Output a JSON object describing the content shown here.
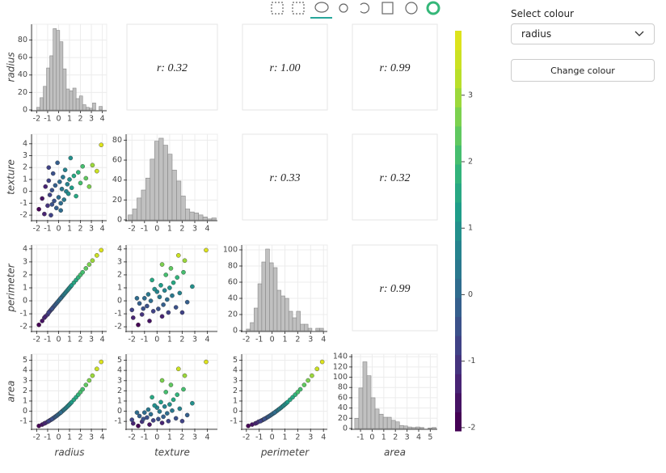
{
  "chart_data": {
    "type": "scatter_matrix",
    "colormap": "viridis",
    "hist_color": "#c0c0c0",
    "variables": [
      {
        "name": "radius",
        "lim": [
          -2.4,
          4.4
        ],
        "ticks": [
          -2,
          -1,
          0,
          1,
          2,
          3,
          4
        ],
        "values": [
          -1.8,
          -1.5,
          -1.3,
          -1.2,
          -1.0,
          -0.9,
          -0.8,
          -0.7,
          -0.6,
          -0.5,
          -0.4,
          -0.3,
          -0.2,
          -0.1,
          0.0,
          0.1,
          0.2,
          0.3,
          0.4,
          0.5,
          0.6,
          0.7,
          0.8,
          0.9,
          1.0,
          1.1,
          1.2,
          1.4,
          1.6,
          1.8,
          2.0,
          2.2,
          2.5,
          2.8,
          3.1,
          3.5,
          3.9,
          -0.6,
          -0.9,
          0.2
        ],
        "hist": {
          "bins": [
            -2.0,
            -1.7,
            -1.4,
            -1.1,
            -0.8,
            -0.5,
            -0.2,
            0.1,
            0.4,
            0.7,
            1.0,
            1.3,
            1.6,
            1.9,
            2.2,
            2.5,
            2.8,
            3.1,
            3.4,
            3.7,
            4.0
          ],
          "counts": [
            3,
            14,
            27,
            48,
            62,
            93,
            91,
            78,
            47,
            24,
            22,
            25,
            13,
            16,
            6,
            3,
            2,
            8,
            0,
            4
          ],
          "ylim": [
            0,
            98
          ],
          "yticks": [
            0,
            20,
            40,
            60,
            80
          ]
        }
      },
      {
        "name": "texture",
        "lim": [
          -2.4,
          4.8
        ],
        "ticks": [
          -2,
          -1,
          0,
          1,
          2,
          3,
          4
        ],
        "values": [
          -1.5,
          -0.6,
          -1.9,
          0.4,
          -1.2,
          0.9,
          -0.3,
          -2.0,
          0.1,
          1.5,
          -0.8,
          0.5,
          -1.4,
          2.4,
          -0.5,
          0.8,
          -1.0,
          0.2,
          1.2,
          -0.7,
          1.8,
          0.0,
          0.6,
          -0.2,
          1.0,
          2.8,
          0.3,
          1.3,
          -0.4,
          1.6,
          0.7,
          2.1,
          1.1,
          0.4,
          2.2,
          1.7,
          3.9,
          -1.1,
          2.0,
          -1.6
        ],
        "hist": {
          "bins": [
            -2.3,
            -1.95,
            -1.6,
            -1.25,
            -0.9,
            -0.55,
            -0.2,
            0.15,
            0.5,
            0.85,
            1.2,
            1.55,
            1.9,
            2.25,
            2.6,
            2.95,
            3.3,
            3.65,
            4.0,
            4.35,
            4.7
          ],
          "counts": [
            5,
            11,
            22,
            30,
            42,
            61,
            79,
            82,
            75,
            66,
            50,
            39,
            24,
            11,
            8,
            7,
            5,
            3,
            1,
            2
          ],
          "ylim": [
            0,
            86
          ],
          "yticks": [
            0,
            20,
            40,
            60,
            80
          ]
        }
      },
      {
        "name": "perimeter",
        "lim": [
          -2.3,
          4.3
        ],
        "ticks": [
          -2,
          -1,
          0,
          1,
          2,
          3,
          4
        ],
        "values": [
          -1.85,
          -1.55,
          -1.3,
          -1.2,
          -1.05,
          -0.9,
          -0.8,
          -0.7,
          -0.62,
          -0.5,
          -0.4,
          -0.3,
          -0.2,
          -0.1,
          0.0,
          0.1,
          0.2,
          0.3,
          0.4,
          0.5,
          0.6,
          0.7,
          0.8,
          0.9,
          1.0,
          1.1,
          1.2,
          1.4,
          1.6,
          1.8,
          2.0,
          2.2,
          2.5,
          2.8,
          3.1,
          3.5,
          3.9,
          -0.6,
          -0.9,
          0.2
        ],
        "hist": {
          "bins": [
            -2.0,
            -1.7,
            -1.4,
            -1.1,
            -0.8,
            -0.5,
            -0.2,
            0.1,
            0.4,
            0.7,
            1.0,
            1.3,
            1.6,
            1.9,
            2.2,
            2.5,
            2.8,
            3.1,
            3.4,
            3.7,
            4.0
          ],
          "counts": [
            2,
            10,
            28,
            58,
            85,
            101,
            84,
            78,
            50,
            43,
            40,
            24,
            16,
            24,
            8,
            8,
            3,
            0,
            3,
            3
          ],
          "ylim": [
            0,
            106
          ],
          "yticks": [
            0,
            20,
            40,
            60,
            80,
            100
          ]
        }
      },
      {
        "name": "area",
        "lim": [
          -1.7,
          5.6
        ],
        "ticks": [
          -1,
          0,
          1,
          2,
          3,
          4,
          5
        ],
        "values": [
          -1.44,
          -1.31,
          -1.2,
          -1.15,
          -1.03,
          -0.97,
          -0.9,
          -0.84,
          -0.77,
          -0.7,
          -0.62,
          -0.54,
          -0.47,
          -0.38,
          -0.3,
          -0.21,
          -0.13,
          -0.03,
          0.06,
          0.16,
          0.25,
          0.35,
          0.46,
          0.56,
          0.67,
          0.78,
          0.89,
          1.13,
          1.37,
          1.62,
          1.88,
          2.15,
          2.58,
          3.02,
          3.49,
          4.15,
          4.84,
          -0.77,
          -0.97,
          -0.13
        ],
        "hist": {
          "bins": [
            -1.5,
            -1.15,
            -0.8,
            -0.45,
            -0.1,
            0.25,
            0.6,
            0.95,
            1.3,
            1.65,
            2.0,
            2.35,
            2.7,
            3.05,
            3.4,
            3.75,
            4.1,
            4.45,
            4.8,
            5.15,
            5.5
          ],
          "counts": [
            20,
            79,
            130,
            103,
            60,
            38,
            28,
            22,
            22,
            16,
            13,
            6,
            5,
            3,
            2,
            3,
            2,
            0,
            1,
            2
          ],
          "ylim": [
            0,
            145
          ],
          "yticks": [
            0,
            20,
            40,
            60,
            80,
            100,
            120,
            140
          ]
        }
      }
    ],
    "correlations": [
      [
        "r: 0.32",
        "r: 1.00",
        "r: 0.99"
      ],
      [
        "r: 0.33",
        "r: 0.32"
      ],
      [
        "r: 0.99"
      ]
    ],
    "colorbar": {
      "lim": [
        -2.05,
        3.97
      ],
      "ticks": [
        -2,
        -1,
        0,
        1,
        2,
        3
      ]
    },
    "controls": {
      "select_label": "Select colour",
      "selected": "radius",
      "button": "Change colour"
    }
  }
}
